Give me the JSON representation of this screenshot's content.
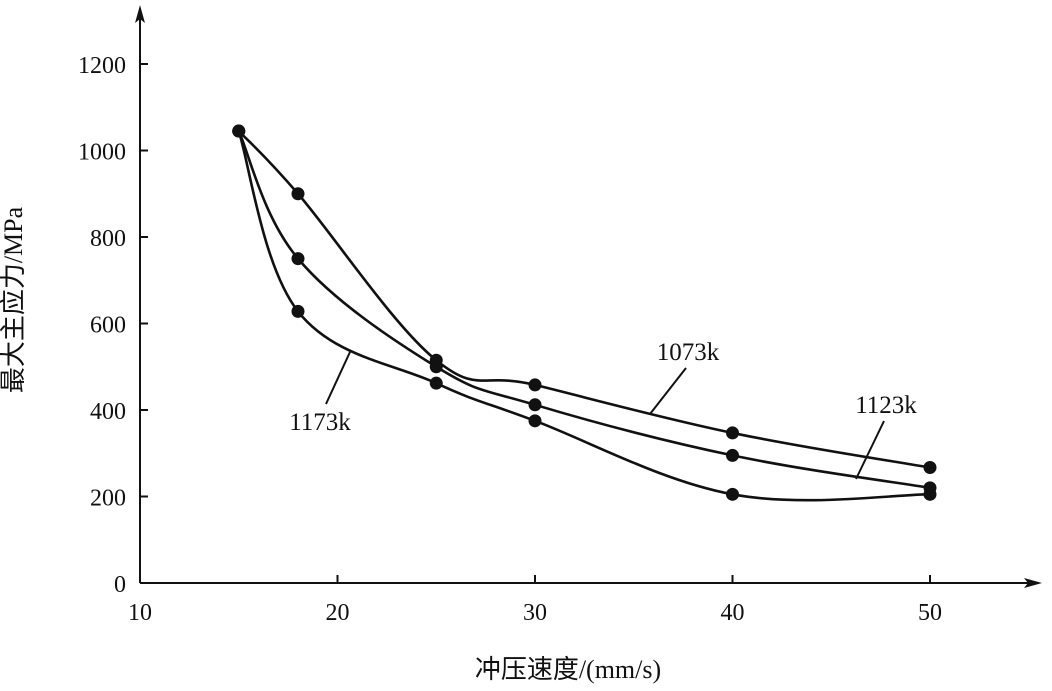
{
  "chart_data": {
    "type": "line",
    "xlabel": "冲压速度/(mm/s)",
    "ylabel": "最大主应力/MPa",
    "xlim": [
      10,
      55
    ],
    "ylim": [
      0,
      1300
    ],
    "x_ticks": [
      10,
      20,
      30,
      40,
      50
    ],
    "y_ticks": [
      0,
      200,
      400,
      600,
      800,
      1000,
      1200
    ],
    "grid": false,
    "legend": "none (series labeled inline with leader lines)",
    "series": [
      {
        "name": "1073k",
        "x": [
          15,
          18,
          25,
          30,
          40,
          50
        ],
        "y": [
          1045,
          900,
          515,
          458,
          347,
          267
        ],
        "marker": "filled-circle",
        "color": "#111111"
      },
      {
        "name": "1123k",
        "x": [
          15,
          18,
          25,
          30,
          40,
          50
        ],
        "y": [
          1045,
          750,
          500,
          412,
          295,
          220
        ],
        "marker": "filled-circle",
        "color": "#111111"
      },
      {
        "name": "1173k",
        "x": [
          15,
          18,
          25,
          30,
          40,
          50
        ],
        "y": [
          1045,
          628,
          462,
          375,
          205,
          205
        ],
        "marker": "filled-circle",
        "color": "#111111"
      }
    ]
  }
}
